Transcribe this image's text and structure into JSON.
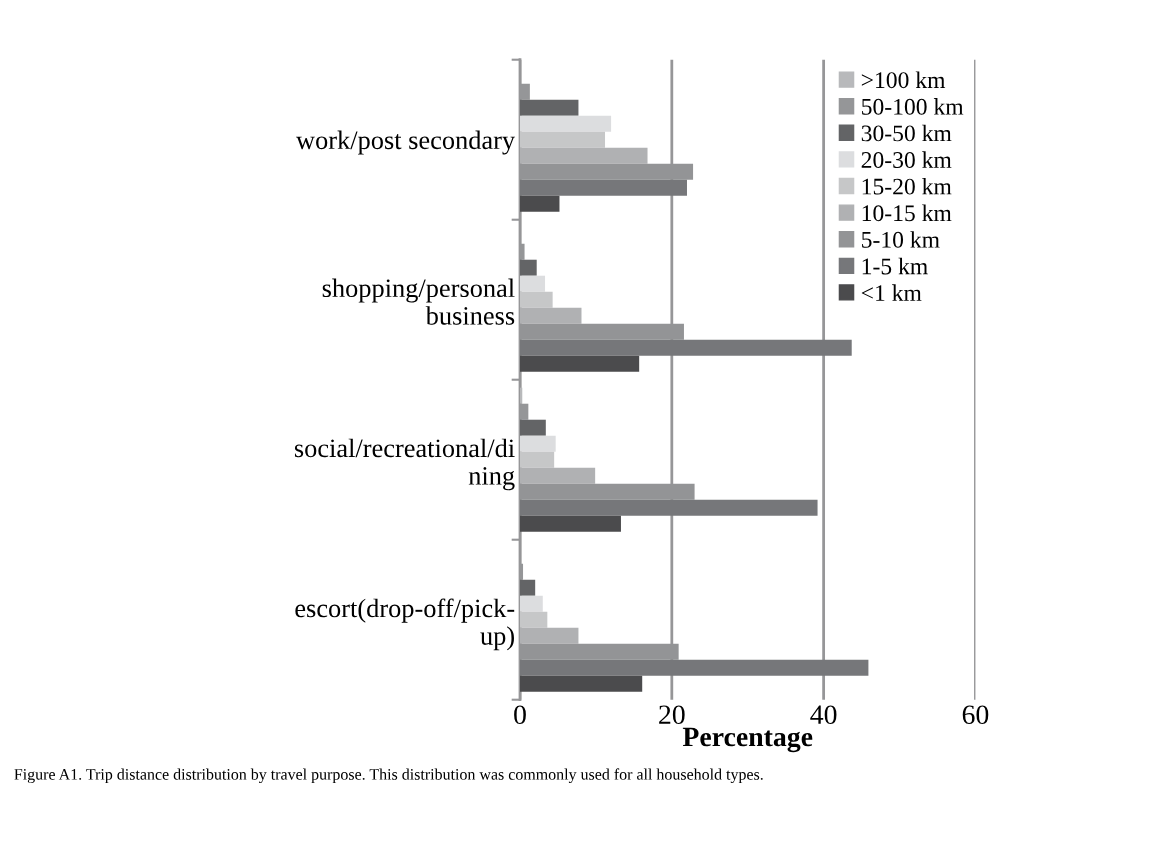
{
  "chart_data": {
    "type": "bar",
    "orientation": "horizontal",
    "xlabel": "Percentage",
    "categories": [
      "work/post secondary",
      "shopping/personal\nbusiness",
      "social/recreational/di\nning",
      "escort(drop-off/pick-\nup)"
    ],
    "series": [
      {
        "name": ">100 km",
        "color": "#b8b9bb",
        "values": [
          0.0,
          null,
          0.3,
          null
        ]
      },
      {
        "name": "50-100 km",
        "color": "#959698",
        "values": [
          1.3,
          0.6,
          1.1,
          0.4
        ]
      },
      {
        "name": "30-50 km",
        "color": "#636466",
        "values": [
          7.7,
          2.2,
          3.4,
          2.0
        ]
      },
      {
        "name": "20-30 km",
        "color": "#dcdddf",
        "values": [
          12.0,
          3.3,
          4.7,
          3.0
        ]
      },
      {
        "name": "15-20 km",
        "color": "#c6c7c8",
        "values": [
          11.2,
          4.3,
          4.5,
          3.6
        ]
      },
      {
        "name": "10-15 km",
        "color": "#b0b1b3",
        "values": [
          16.8,
          8.1,
          9.9,
          7.7
        ]
      },
      {
        "name": "5-10 km",
        "color": "#939496",
        "values": [
          22.8,
          21.6,
          23.0,
          20.9
        ]
      },
      {
        "name": "1-5 km",
        "color": "#76777a",
        "values": [
          22.0,
          43.7,
          39.2,
          45.9
        ]
      },
      {
        "name": "<1 km",
        "color": "#4b4b4d",
        "values": [
          5.2,
          15.7,
          13.3,
          16.1
        ]
      }
    ],
    "xlim": [
      0,
      60
    ],
    "xticks": [
      0,
      20,
      40,
      60
    ],
    "grid": "x",
    "legend": "top right",
    "annotations": [
      "Figure A1. Trip distance distribution by travel purpose. This distribution was commonly used for all household types."
    ]
  }
}
